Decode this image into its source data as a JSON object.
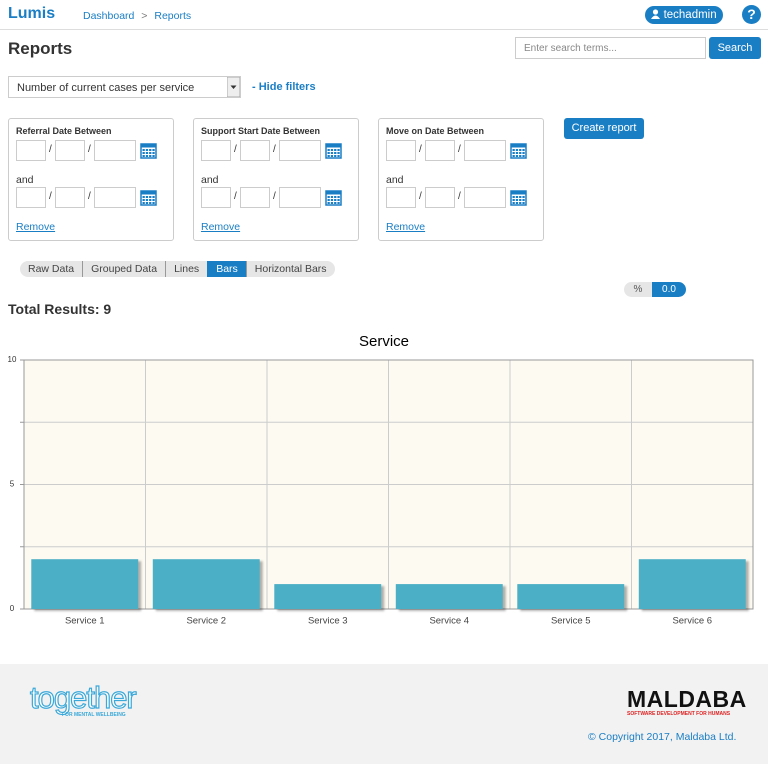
{
  "header": {
    "brand": "Lumis",
    "breadcrumb": [
      "Dashboard",
      ">",
      "Reports"
    ],
    "user": "techadmin",
    "help": "?"
  },
  "page": {
    "title": "Reports",
    "search_placeholder": "Enter search terms...",
    "search_button": "Search"
  },
  "report_select": "Number of current cases per service",
  "hide_filters": "- Hide filters",
  "date_separator": "/",
  "filters": [
    {
      "label": "Referral Date Between",
      "and": "and",
      "remove": "Remove"
    },
    {
      "label": "Support Start Date Between",
      "and": "and",
      "remove": "Remove"
    },
    {
      "label": "Move on Date Between",
      "and": "and",
      "remove": "Remove"
    }
  ],
  "create_report": "Create report",
  "view_tabs": {
    "items": [
      "Raw Data",
      "Grouped Data",
      "Lines",
      "Bars",
      "Horizontal Bars"
    ],
    "active": 3
  },
  "toggle": {
    "percent": "%",
    "value": "0.0"
  },
  "total_results": {
    "label": "Total Results:",
    "value": 9
  },
  "chart_data": {
    "type": "bar",
    "title": "Service",
    "categories": [
      "Service 1",
      "Service 2",
      "Service 3",
      "Service 4",
      "Service 5",
      "Service 6"
    ],
    "values": [
      2,
      2,
      1,
      1,
      1,
      2
    ],
    "color": "#4bafc6",
    "ylim": [
      0,
      10
    ],
    "yticks": [
      0,
      5,
      10
    ],
    "minor_yticks": [
      2.5,
      7.5
    ],
    "grid": true
  },
  "footer": {
    "together": "together",
    "together_tagline": "FOR MENTAL WELLBEING",
    "maldaba": "MALDABA",
    "maldaba_tagline": "SOFTWARE DEVELOPMENT FOR HUMANS",
    "copyright": "© Copyright 2017, Maldaba Ltd."
  }
}
